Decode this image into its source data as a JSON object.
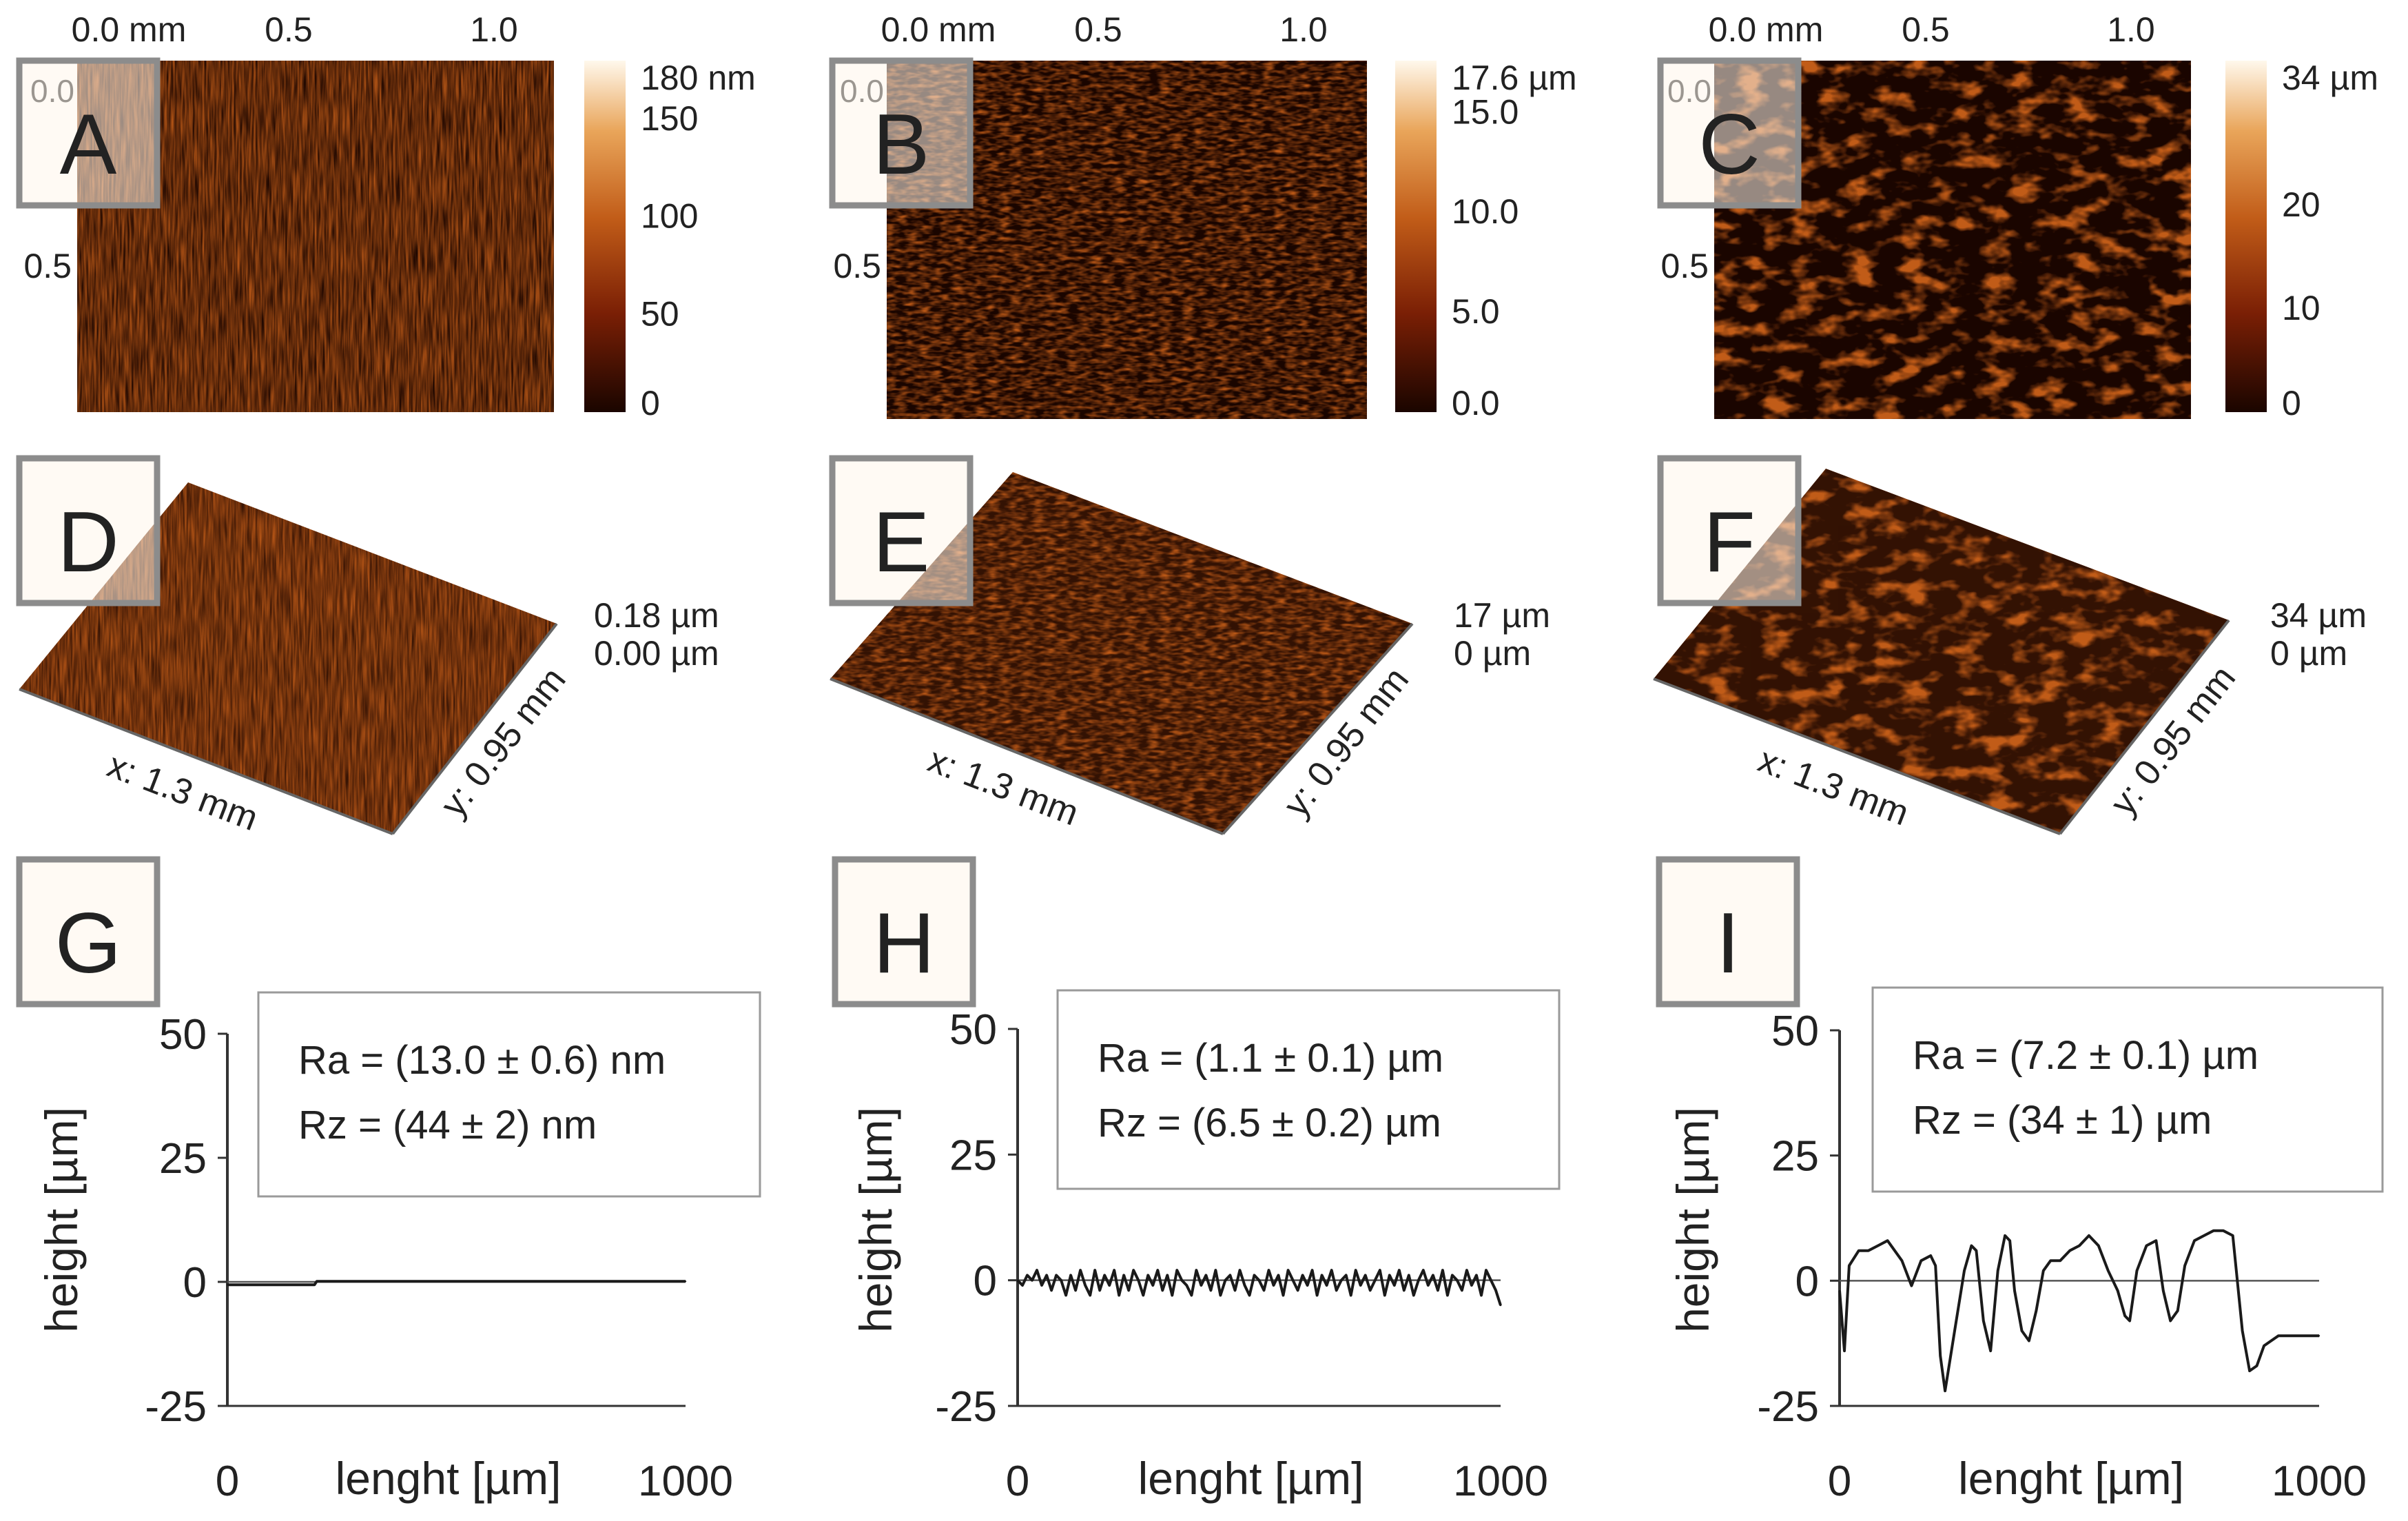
{
  "colors": {
    "surface_dark": "#1a0500",
    "surface_mid": "#c15c18",
    "surface_light": "#fff8ec",
    "panel_border": "#8c8c8c",
    "profile_line": "#1a1a1a"
  },
  "panel_letters": [
    "A",
    "B",
    "C",
    "D",
    "E",
    "F",
    "G",
    "H",
    "I"
  ],
  "maps_2d": [
    {
      "letter": "A",
      "x_ticks": [
        "0.0 mm",
        "0.5",
        "1.0"
      ],
      "y_ticks": [
        "0.0",
        "0.5"
      ],
      "colorbar": {
        "labels": [
          "180 nm",
          "150",
          "100",
          "50",
          "0"
        ],
        "values": [
          180,
          150,
          100,
          50,
          0
        ],
        "max": 180
      }
    },
    {
      "letter": "B",
      "x_ticks": [
        "0.0 mm",
        "0.5",
        "1.0"
      ],
      "y_ticks": [
        "0.0",
        "0.5"
      ],
      "colorbar": {
        "labels": [
          "17.6 µm",
          "15.0",
          "10.0",
          "5.0",
          "0.0"
        ],
        "values": [
          17.6,
          15,
          10,
          5,
          0
        ],
        "max": 17.6
      }
    },
    {
      "letter": "C",
      "x_ticks": [
        "0.0 mm",
        "0.5",
        "1.0"
      ],
      "y_ticks": [
        "0.0",
        "0.5"
      ],
      "colorbar": {
        "labels": [
          "34 µm",
          "20",
          "10",
          "0"
        ],
        "values": [
          34,
          20,
          10,
          0
        ],
        "max": 34
      }
    }
  ],
  "maps_3d": [
    {
      "letter": "D",
      "x_label": "x: 1.3 mm",
      "y_label": "y: 0.95 mm",
      "z_max": "0.18 µm",
      "z_min": "0.00 µm"
    },
    {
      "letter": "E",
      "x_label": "x: 1.3 mm",
      "y_label": "y: 0.95 mm",
      "z_max": "17 µm",
      "z_min": "0 µm"
    },
    {
      "letter": "F",
      "x_label": "x: 1.3 mm",
      "y_label": "y: 0.95 mm",
      "z_max": "34 µm",
      "z_min": "0 µm"
    }
  ],
  "chart_data": [
    {
      "type": "line",
      "panel": "G",
      "xlabel": "lenght [µm]",
      "ylabel": "height [µm]",
      "xlim": [
        0,
        1000
      ],
      "ylim": [
        -25,
        50
      ],
      "x_ticks": [
        "0",
        "1000"
      ],
      "y_ticks": [
        "50",
        "25",
        "0",
        "-25"
      ],
      "annotation": [
        "Ra = (13.0 ± 0.6) nm",
        "Rz = (44 ± 2) nm"
      ],
      "x": [
        0,
        190,
        195,
        1000
      ],
      "y": [
        -0.6,
        -0.6,
        0.1,
        0.1
      ]
    },
    {
      "type": "line",
      "panel": "H",
      "xlabel": "lenght [µm]",
      "ylabel": "height [µm]",
      "xlim": [
        0,
        1000
      ],
      "ylim": [
        -25,
        50
      ],
      "x_ticks": [
        "0",
        "1000"
      ],
      "y_ticks": [
        "50",
        "25",
        "0",
        "-25"
      ],
      "annotation": [
        "Ra = (1.1 ± 0.1) µm",
        "Rz = (6.5 ± 0.2) µm"
      ],
      "x": [
        0,
        10,
        20,
        30,
        40,
        50,
        60,
        70,
        80,
        90,
        100,
        110,
        120,
        130,
        140,
        150,
        160,
        170,
        180,
        190,
        200,
        210,
        220,
        230,
        240,
        250,
        260,
        270,
        280,
        290,
        300,
        310,
        320,
        330,
        340,
        350,
        360,
        370,
        380,
        390,
        400,
        410,
        420,
        430,
        440,
        450,
        460,
        470,
        480,
        490,
        500,
        510,
        520,
        530,
        540,
        550,
        560,
        570,
        580,
        590,
        600,
        610,
        620,
        630,
        640,
        650,
        660,
        670,
        680,
        690,
        700,
        710,
        720,
        730,
        740,
        750,
        760,
        770,
        780,
        790,
        800,
        810,
        820,
        830,
        840,
        850,
        860,
        870,
        880,
        890,
        900,
        910,
        920,
        930,
        940,
        950,
        960,
        970,
        980,
        990,
        1000
      ],
      "y": [
        0,
        -1,
        1,
        0,
        2,
        -1,
        1,
        -2,
        1,
        0,
        -3,
        1,
        -2,
        2,
        -1,
        -3,
        2,
        -2,
        1,
        -1,
        2,
        -3,
        1,
        -2,
        2,
        0,
        -3,
        1,
        -1,
        2,
        -2,
        1,
        -3,
        2,
        0,
        -1,
        -3,
        2,
        -1,
        1,
        -2,
        2,
        -3,
        0,
        1,
        -2,
        2,
        -1,
        -3,
        1,
        0,
        -2,
        2,
        -1,
        1,
        -3,
        2,
        0,
        -2,
        1,
        -1,
        2,
        -3,
        1,
        -1,
        2,
        -2,
        0,
        1,
        -3,
        2,
        -1,
        1,
        -2,
        0,
        2,
        -3,
        1,
        -1,
        2,
        -2,
        1,
        -3,
        0,
        2,
        -1,
        1,
        -2,
        2,
        -3,
        1,
        0,
        -2,
        2,
        -1,
        1,
        -3,
        2,
        0,
        -2,
        -5
      ]
    },
    {
      "type": "line",
      "panel": "I",
      "xlabel": "lenght [µm]",
      "ylabel": "height [µm]",
      "xlim": [
        0,
        1000
      ],
      "ylim": [
        -25,
        50
      ],
      "x_ticks": [
        "0",
        "1000"
      ],
      "y_ticks": [
        "50",
        "25",
        "0",
        "-25"
      ],
      "annotation": [
        "Ra = (7.2 ± 0.1) µm",
        "Rz = (34 ± 1) µm"
      ],
      "x": [
        0,
        10,
        20,
        40,
        60,
        80,
        100,
        115,
        130,
        150,
        170,
        190,
        200,
        210,
        220,
        240,
        260,
        275,
        285,
        300,
        315,
        330,
        345,
        355,
        365,
        380,
        395,
        410,
        425,
        440,
        460,
        480,
        500,
        520,
        540,
        560,
        580,
        595,
        605,
        620,
        640,
        660,
        675,
        690,
        705,
        720,
        740,
        760,
        780,
        800,
        820,
        840,
        855,
        870,
        885,
        900,
        915,
        930,
        945,
        960,
        980,
        1000
      ],
      "y": [
        -2,
        -14,
        3,
        6,
        6,
        7,
        8,
        6,
        4,
        -1,
        4,
        5,
        3,
        -15,
        -22,
        -10,
        2,
        7,
        6,
        -8,
        -14,
        2,
        9,
        8,
        -2,
        -10,
        -12,
        -6,
        2,
        4,
        4,
        6,
        7,
        9,
        7,
        2,
        -2,
        -7,
        -8,
        2,
        7,
        8,
        -2,
        -8,
        -6,
        3,
        8,
        9,
        10,
        10,
        9,
        -10,
        -18,
        -17,
        -13,
        -12,
        -11,
        -11,
        -11,
        -11,
        -11,
        -11
      ]
    }
  ]
}
